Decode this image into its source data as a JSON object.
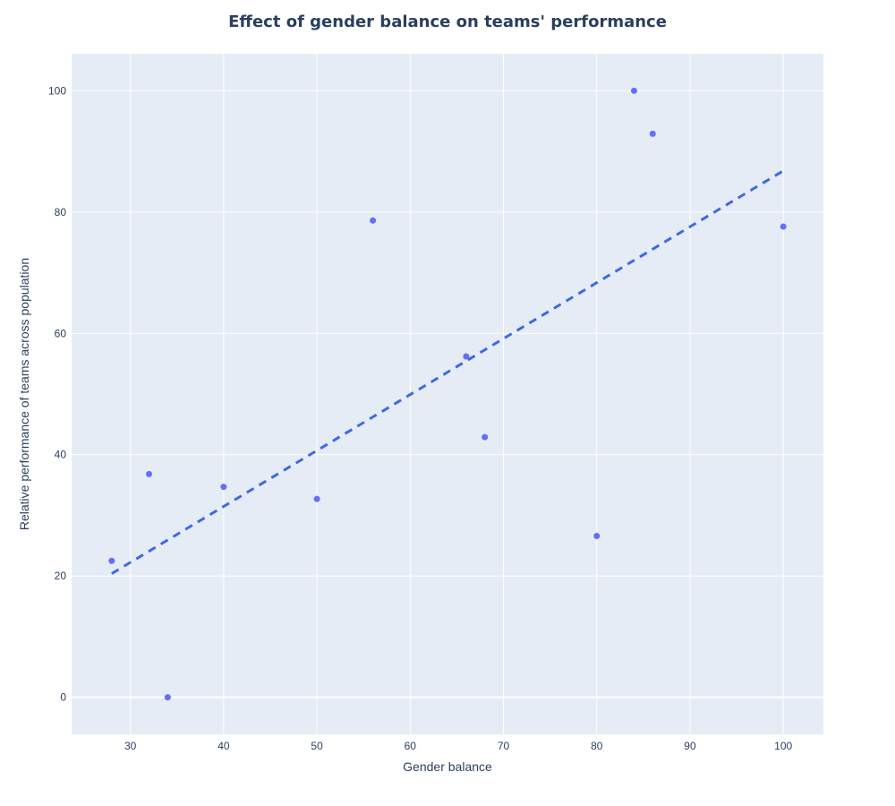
{
  "chart_data": {
    "type": "scatter",
    "title": "Effect of gender balance on teams' performance",
    "xlabel": "Gender balance",
    "ylabel": "Relative performance of teams across population",
    "xlim": [
      23.7,
      104.3
    ],
    "ylim": [
      -6.1,
      106.1
    ],
    "xticks": [
      30,
      40,
      50,
      60,
      70,
      80,
      90,
      100
    ],
    "yticks": [
      0,
      20,
      40,
      60,
      80,
      100
    ],
    "grid": true,
    "series": [
      {
        "mode": "markers",
        "color": "#636efa",
        "points": [
          {
            "x": 28,
            "y": 22.5
          },
          {
            "x": 32,
            "y": 36.8
          },
          {
            "x": 34,
            "y": 0
          },
          {
            "x": 40,
            "y": 34.7
          },
          {
            "x": 50,
            "y": 32.7
          },
          {
            "x": 56,
            "y": 78.6
          },
          {
            "x": 66,
            "y": 56.2
          },
          {
            "x": 68,
            "y": 42.9
          },
          {
            "x": 80,
            "y": 26.6
          },
          {
            "x": 84,
            "y": 100
          },
          {
            "x": 86,
            "y": 92.9
          },
          {
            "x": 100,
            "y": 77.6
          }
        ]
      },
      {
        "mode": "lines",
        "dash": "dash",
        "color": "#4169e1",
        "points": [
          {
            "x": 28,
            "y": 20.4
          },
          {
            "x": 100,
            "y": 86.8
          }
        ]
      }
    ],
    "colors": {
      "plot_bg": "#e5ecf6",
      "grid": "#ffffff",
      "text": "#2a3f5f"
    }
  }
}
